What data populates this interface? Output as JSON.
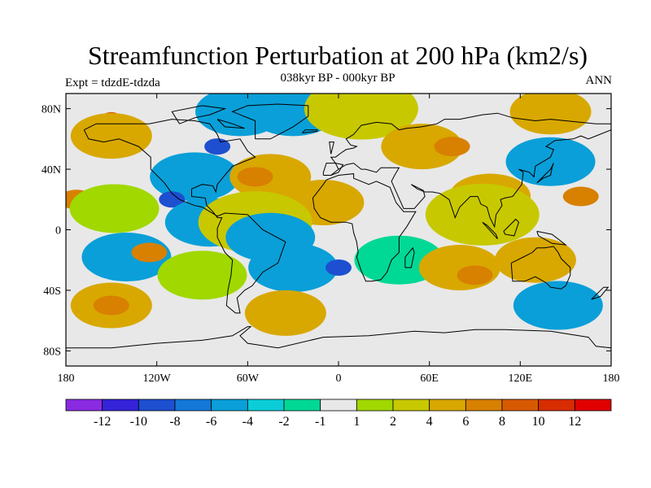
{
  "header": {
    "title": "Streamfunction Perturbation at 200 hPa (km2/s)",
    "subtitle": "038kyr BP - 000kyr BP",
    "left_label": "Expt = tdzdE-tdzda",
    "right_label": "ANN"
  },
  "map": {
    "projection": "cylindrical equidistant",
    "lon_range": [
      -180,
      180
    ],
    "lat_range": [
      -90,
      90
    ],
    "lat_ticks": [
      {
        "value": 80,
        "label": "80N"
      },
      {
        "value": 40,
        "label": "40N"
      },
      {
        "value": 0,
        "label": "0"
      },
      {
        "value": -40,
        "label": "40S"
      },
      {
        "value": -80,
        "label": "80S"
      }
    ],
    "lon_ticks": [
      {
        "value": -180,
        "label": "180"
      },
      {
        "value": -120,
        "label": "120W"
      },
      {
        "value": -60,
        "label": "60W"
      },
      {
        "value": 0,
        "label": "0"
      },
      {
        "value": 60,
        "label": "60E"
      },
      {
        "value": 120,
        "label": "120E"
      },
      {
        "value": 180,
        "label": "180"
      }
    ],
    "background_color": "#e8e8e8",
    "features": [
      {
        "lon": -150,
        "lat": 75,
        "level": 5
      },
      {
        "lon": -150,
        "lat": 62,
        "level": 3
      },
      {
        "lon": -170,
        "lat": 22,
        "level": 5
      },
      {
        "lon": -173,
        "lat": 20,
        "level": 4
      },
      {
        "lon": -148,
        "lat": 14,
        "level": 1
      },
      {
        "lon": -140,
        "lat": -18,
        "level": -3
      },
      {
        "lon": -125,
        "lat": -15,
        "level": 4
      },
      {
        "lon": -150,
        "lat": -50,
        "level": 3
      },
      {
        "lon": -150,
        "lat": -50,
        "level": 4
      },
      {
        "lon": -80,
        "lat": 55,
        "level": -5
      },
      {
        "lon": -65,
        "lat": 78,
        "level": -3
      },
      {
        "lon": -95,
        "lat": 35,
        "level": -3
      },
      {
        "lon": -110,
        "lat": 20,
        "level": -5
      },
      {
        "lon": -85,
        "lat": 5,
        "level": -3
      },
      {
        "lon": -45,
        "lat": 35,
        "level": 3
      },
      {
        "lon": -55,
        "lat": 35,
        "level": 4
      },
      {
        "lon": -10,
        "lat": 18,
        "level": 3
      },
      {
        "lon": -55,
        "lat": 5,
        "level": 2
      },
      {
        "lon": -30,
        "lat": 78,
        "level": -3
      },
      {
        "lon": 15,
        "lat": 80,
        "level": 2
      },
      {
        "lon": 55,
        "lat": 55,
        "level": 3
      },
      {
        "lon": 75,
        "lat": 55,
        "level": 4
      },
      {
        "lon": 100,
        "lat": 22,
        "level": 3
      },
      {
        "lon": 95,
        "lat": 10,
        "level": 2
      },
      {
        "lon": 140,
        "lat": 78,
        "level": 3
      },
      {
        "lon": 160,
        "lat": 22,
        "level": 4
      },
      {
        "lon": 140,
        "lat": 45,
        "level": -3
      },
      {
        "lon": -45,
        "lat": -5,
        "level": -3
      },
      {
        "lon": -30,
        "lat": -25,
        "level": -3
      },
      {
        "lon": 0,
        "lat": -25,
        "level": -5
      },
      {
        "lon": -90,
        "lat": -30,
        "level": 1
      },
      {
        "lon": -35,
        "lat": -55,
        "level": 3
      },
      {
        "lon": 40,
        "lat": -20,
        "level": -1
      },
      {
        "lon": 80,
        "lat": -25,
        "level": 3
      },
      {
        "lon": 90,
        "lat": -30,
        "level": 4
      },
      {
        "lon": 130,
        "lat": -20,
        "level": 3
      },
      {
        "lon": 145,
        "lat": -50,
        "level": -3
      }
    ]
  },
  "colorbar": {
    "colors": [
      "#8a2be2",
      "#3423d8",
      "#1d4fd0",
      "#1478d8",
      "#0a9fd8",
      "#0acdd8",
      "#00d896",
      "#e8e8e8",
      "#a0d800",
      "#c8c800",
      "#d8a800",
      "#d88000",
      "#d85a00",
      "#d82d00",
      "#e00000"
    ],
    "labels": [
      "-12",
      "-10",
      "-8",
      "-6",
      "-4",
      "-2",
      "-1",
      "1",
      "2",
      "4",
      "6",
      "8",
      "10",
      "12"
    ]
  }
}
